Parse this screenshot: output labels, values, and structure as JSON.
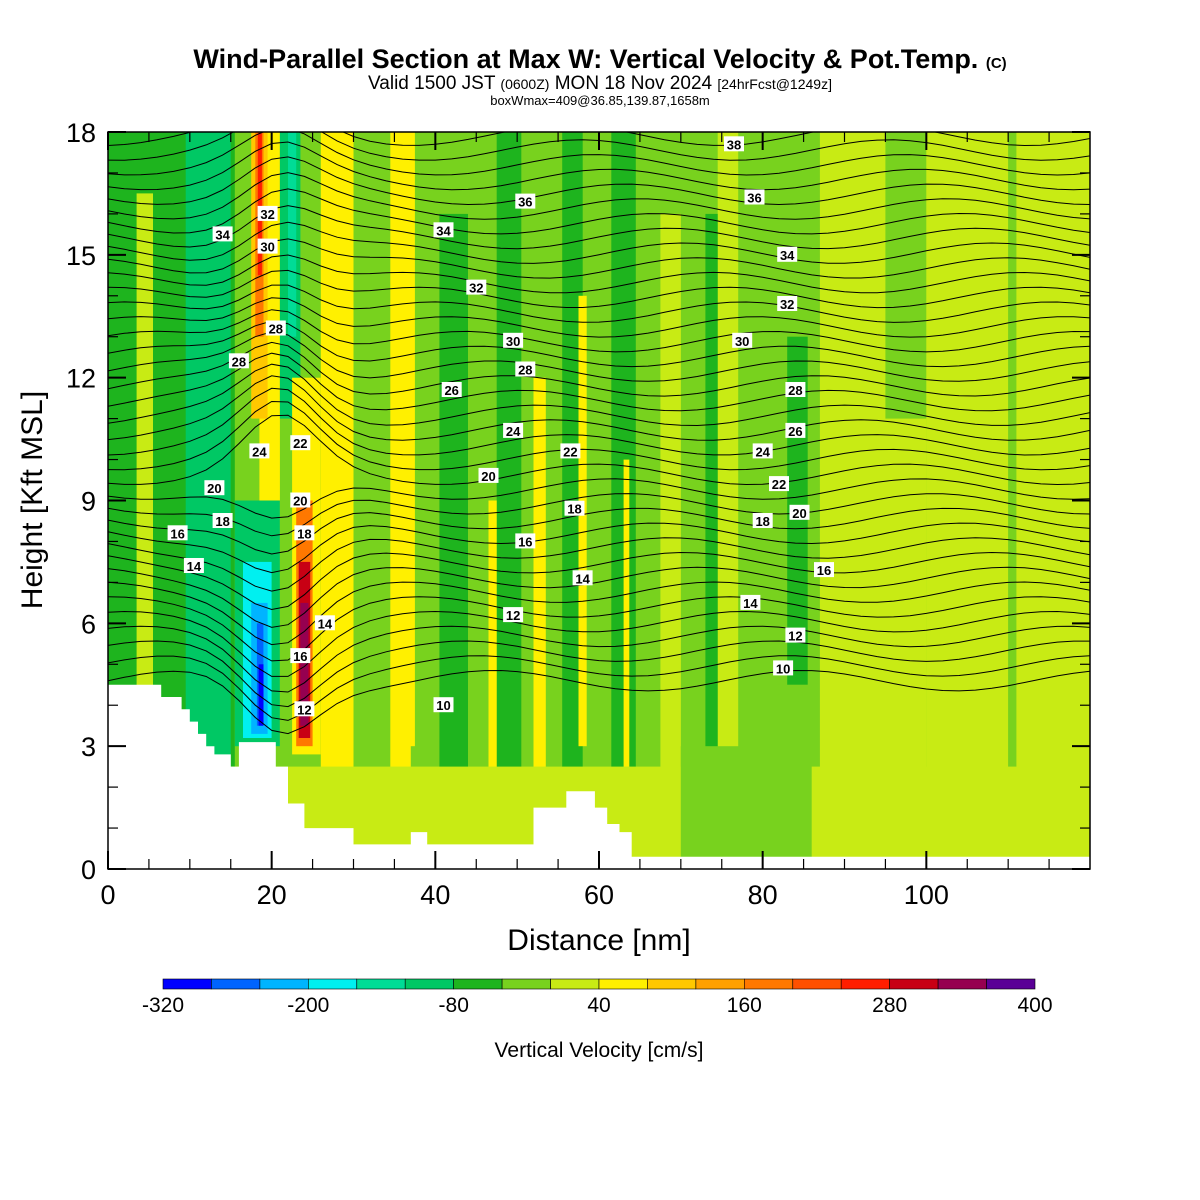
{
  "header": {
    "title": "Wind-Parallel Section at Max W: Vertical Velocity & Pot.Temp.",
    "copyright": "(C)",
    "valid_prefix": "Valid 1500 JST",
    "valid_utc": "(0600Z)",
    "valid_date": "MON 18 Nov 2024",
    "forecast": "[24hrFcst@1249z]",
    "box_info": "boxWmax=409@36.85,139.87,1658m"
  },
  "chart_data": {
    "type": "heatmap",
    "xlabel": "Distance [nm]",
    "ylabel": "Height [Kft MSL]",
    "xlim": [
      0,
      120
    ],
    "ylim": [
      0,
      18
    ],
    "x_ticks": [
      0,
      20,
      40,
      60,
      80,
      100
    ],
    "y_ticks": [
      0,
      3,
      6,
      9,
      12,
      15,
      18
    ],
    "colorbar": {
      "title": "Vertical Velocity [cm/s]",
      "levels": [
        -320,
        -280,
        -240,
        -200,
        -160,
        -120,
        -80,
        -40,
        0,
        40,
        80,
        120,
        160,
        200,
        240,
        280,
        320,
        360,
        400
      ],
      "colors": [
        "#0000ff",
        "#0064ff",
        "#00b4ff",
        "#00f0f0",
        "#00dc96",
        "#00c864",
        "#1eb41e",
        "#78d21e",
        "#c8eb14",
        "#fff000",
        "#ffc800",
        "#ffa000",
        "#ff7800",
        "#ff5000",
        "#ff1e00",
        "#c80014",
        "#960050",
        "#5a0096"
      ],
      "tick_labels": [
        "-320",
        "-200",
        "-80",
        "40",
        "160",
        "280",
        "400"
      ]
    },
    "theta_contour_labels": [
      {
        "label": "34",
        "x": 14,
        "y": 15.5
      },
      {
        "label": "32",
        "x": 19.5,
        "y": 16.0
      },
      {
        "label": "30",
        "x": 19.5,
        "y": 15.2
      },
      {
        "label": "28",
        "x": 20.5,
        "y": 13.2
      },
      {
        "label": "28",
        "x": 16,
        "y": 12.4
      },
      {
        "label": "24",
        "x": 18.5,
        "y": 10.2
      },
      {
        "label": "22",
        "x": 23.5,
        "y": 10.4
      },
      {
        "label": "20",
        "x": 13,
        "y": 9.3
      },
      {
        "label": "20",
        "x": 23.5,
        "y": 9.0
      },
      {
        "label": "18",
        "x": 14,
        "y": 8.5
      },
      {
        "label": "18",
        "x": 24,
        "y": 8.2
      },
      {
        "label": "16",
        "x": 8.5,
        "y": 8.2
      },
      {
        "label": "14",
        "x": 10.5,
        "y": 7.4
      },
      {
        "label": "14",
        "x": 26.5,
        "y": 6.0
      },
      {
        "label": "16",
        "x": 23.5,
        "y": 5.2
      },
      {
        "label": "12",
        "x": 24,
        "y": 3.9
      },
      {
        "label": "10",
        "x": 41,
        "y": 4.0
      },
      {
        "label": "36",
        "x": 51,
        "y": 16.3
      },
      {
        "label": "34",
        "x": 41,
        "y": 15.6
      },
      {
        "label": "32",
        "x": 45,
        "y": 14.2
      },
      {
        "label": "30",
        "x": 49.5,
        "y": 12.9
      },
      {
        "label": "28",
        "x": 51,
        "y": 12.2
      },
      {
        "label": "26",
        "x": 42,
        "y": 11.7
      },
      {
        "label": "24",
        "x": 49.5,
        "y": 10.7
      },
      {
        "label": "22",
        "x": 56.5,
        "y": 10.2
      },
      {
        "label": "20",
        "x": 46.5,
        "y": 9.6
      },
      {
        "label": "18",
        "x": 57,
        "y": 8.8
      },
      {
        "label": "16",
        "x": 51,
        "y": 8.0
      },
      {
        "label": "14",
        "x": 58,
        "y": 7.1
      },
      {
        "label": "12",
        "x": 49.5,
        "y": 6.2
      },
      {
        "label": "38",
        "x": 76.5,
        "y": 17.7
      },
      {
        "label": "36",
        "x": 79,
        "y": 16.4
      },
      {
        "label": "34",
        "x": 83,
        "y": 15.0
      },
      {
        "label": "32",
        "x": 83,
        "y": 13.8
      },
      {
        "label": "30",
        "x": 77.5,
        "y": 12.9
      },
      {
        "label": "28",
        "x": 84,
        "y": 11.7
      },
      {
        "label": "26",
        "x": 84,
        "y": 10.7
      },
      {
        "label": "24",
        "x": 80,
        "y": 10.2
      },
      {
        "label": "22",
        "x": 82,
        "y": 9.4
      },
      {
        "label": "20",
        "x": 84.5,
        "y": 8.7
      },
      {
        "label": "18",
        "x": 80,
        "y": 8.5
      },
      {
        "label": "16",
        "x": 87.5,
        "y": 7.3
      },
      {
        "label": "14",
        "x": 78.5,
        "y": 6.5
      },
      {
        "label": "12",
        "x": 84,
        "y": 5.7
      },
      {
        "label": "10",
        "x": 82.5,
        "y": 4.9
      }
    ]
  }
}
